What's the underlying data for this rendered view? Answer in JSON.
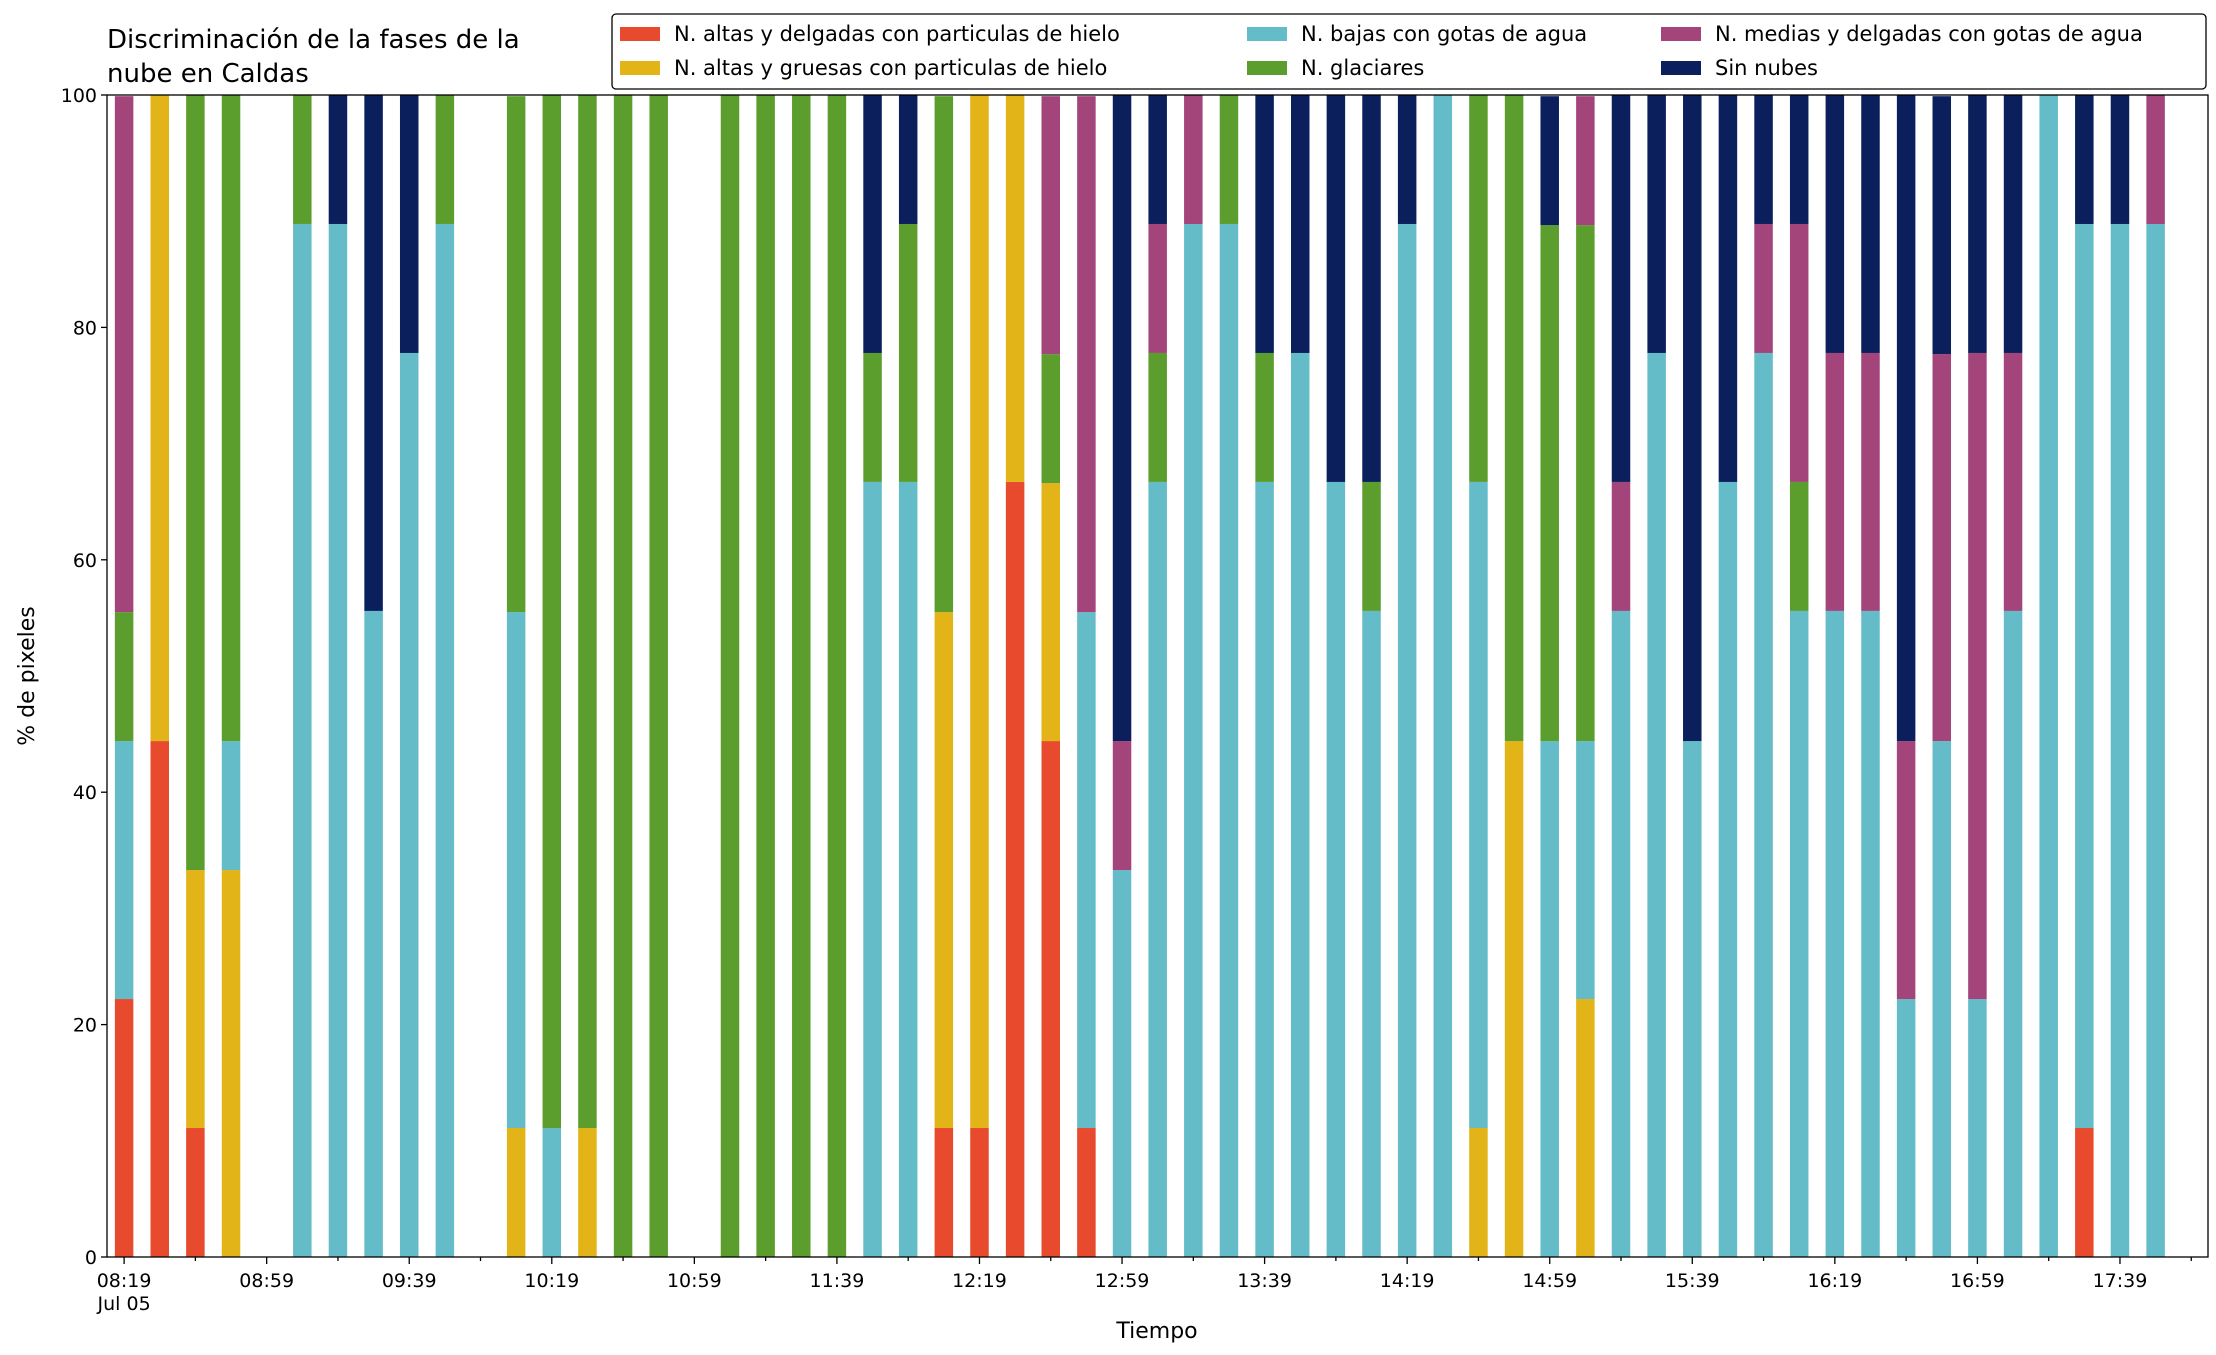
{
  "chart_data": {
    "type": "stacked_bar",
    "title": "Discriminación de la fases de la\nnube en Caldas",
    "xlabel": "Tiempo",
    "ylabel": "% de pixeles",
    "date_label": "Jul 05",
    "categories": [
      "08:19",
      null,
      null,
      null,
      "08:59",
      null,
      null,
      null,
      "09:39",
      null,
      null,
      null,
      "10:19",
      null,
      null,
      null,
      "10:59",
      null,
      null,
      null,
      "11:39",
      null,
      null,
      null,
      "12:19",
      null,
      null,
      null,
      "12:59",
      null,
      null,
      null,
      "13:39",
      null,
      null,
      null,
      "14:19",
      null,
      null,
      null,
      "14:59",
      null,
      null,
      null,
      "15:39",
      null,
      null,
      null,
      "16:19",
      null,
      null,
      null,
      "16:59",
      null,
      null,
      null,
      "17:39",
      null
    ],
    "ylim": [
      0,
      100
    ],
    "yticks": [
      0,
      20,
      40,
      60,
      80,
      100
    ],
    "legend": "upper right",
    "series": [
      {
        "name": "N. altas y delgadas con particulas de hielo",
        "color": "#e84a2e",
        "values": [
          22.2,
          44.4,
          11.1,
          0,
          0,
          0,
          0,
          0,
          0,
          0,
          0,
          0,
          0,
          0,
          0,
          0,
          0,
          0,
          0,
          0,
          0,
          0,
          0,
          11.1,
          11.1,
          66.7,
          44.4,
          11.1,
          0,
          0,
          0,
          0,
          0,
          0,
          0,
          0,
          0,
          0,
          0,
          0,
          0,
          0,
          0,
          0,
          0,
          0,
          0,
          0,
          0,
          0,
          0,
          0,
          0,
          0,
          0,
          11.1,
          0,
          0
        ]
      },
      {
        "name": "N. altas y gruesas con particulas de hielo",
        "color": "#e2b418",
        "values": [
          0,
          55.6,
          22.2,
          33.3,
          0,
          0,
          0,
          0,
          0,
          0,
          0,
          11.1,
          0,
          11.1,
          0,
          0,
          0,
          0,
          0,
          0,
          0,
          0,
          0,
          44.4,
          88.9,
          33.3,
          22.2,
          0,
          0,
          0,
          0,
          0,
          0,
          0,
          0,
          0,
          0,
          0,
          11.1,
          44.4,
          0,
          22.2,
          0,
          0,
          0,
          0,
          0,
          0,
          0,
          0,
          0,
          0,
          0,
          0,
          0,
          0,
          0,
          0
        ]
      },
      {
        "name": "N. bajas con gotas de agua",
        "color": "#63bcc8",
        "values": [
          22.2,
          0,
          0,
          11.1,
          0,
          88.9,
          88.9,
          55.6,
          77.8,
          88.9,
          0,
          44.4,
          11.1,
          0,
          0,
          0,
          0,
          0,
          0,
          0,
          0,
          66.7,
          66.7,
          0,
          0,
          0,
          0,
          44.4,
          33.3,
          66.7,
          88.9,
          88.9,
          66.7,
          77.8,
          66.7,
          55.6,
          88.9,
          100,
          55.6,
          0,
          44.4,
          22.2,
          55.6,
          77.8,
          44.4,
          66.7,
          77.8,
          55.6,
          55.6,
          55.6,
          22.2,
          44.4,
          22.2,
          55.6,
          100,
          77.8,
          88.9,
          88.9
        ]
      },
      {
        "name": "N. glaciares",
        "color": "#5c9e2e",
        "values": [
          11.1,
          0,
          66.7,
          55.6,
          0,
          11.1,
          0,
          0,
          0,
          11.1,
          0,
          44.4,
          88.9,
          88.9,
          100,
          100,
          0,
          100,
          100,
          100,
          100,
          11.1,
          22.2,
          44.4,
          0,
          0,
          11.1,
          0,
          0,
          11.1,
          0,
          11.1,
          11.1,
          0,
          0,
          11.1,
          0,
          0,
          33.3,
          55.6,
          44.4,
          44.4,
          0,
          0,
          0,
          0,
          0,
          11.1,
          0,
          0,
          0,
          0,
          0,
          0,
          0,
          0,
          0,
          0
        ]
      },
      {
        "name": "N. medias y delgadas con gotas de agua",
        "color": "#a3457a",
        "values": [
          44.4,
          0,
          0,
          0,
          0,
          0,
          0,
          0,
          0,
          0,
          0,
          0,
          0,
          0,
          0,
          0,
          0,
          0,
          0,
          0,
          0,
          0,
          0,
          0,
          0,
          0,
          22.2,
          44.4,
          11.1,
          11.1,
          11.1,
          0,
          0,
          0,
          0,
          0,
          0,
          0,
          0,
          0,
          0,
          11.1,
          11.1,
          0,
          0,
          0,
          11.1,
          22.2,
          22.2,
          22.2,
          22.2,
          33.3,
          55.6,
          22.2,
          0,
          0,
          0,
          11.1
        ]
      },
      {
        "name": "Sin nubes",
        "color": "#0a1f5c",
        "values": [
          0,
          0,
          0,
          0,
          0,
          0,
          11.1,
          44.4,
          22.2,
          0,
          0,
          0,
          0,
          0,
          0,
          0,
          0,
          0,
          0,
          0,
          0,
          22.2,
          11.1,
          0,
          0,
          0,
          0,
          0,
          55.6,
          11.1,
          0,
          0,
          22.2,
          22.2,
          33.3,
          33.3,
          11.1,
          0,
          0,
          0,
          11.1,
          0,
          33.3,
          22.2,
          55.6,
          33.3,
          11.1,
          11.1,
          22.2,
          22.2,
          55.6,
          22.2,
          22.2,
          22.2,
          0,
          11.1,
          11.1,
          0
        ]
      }
    ]
  }
}
